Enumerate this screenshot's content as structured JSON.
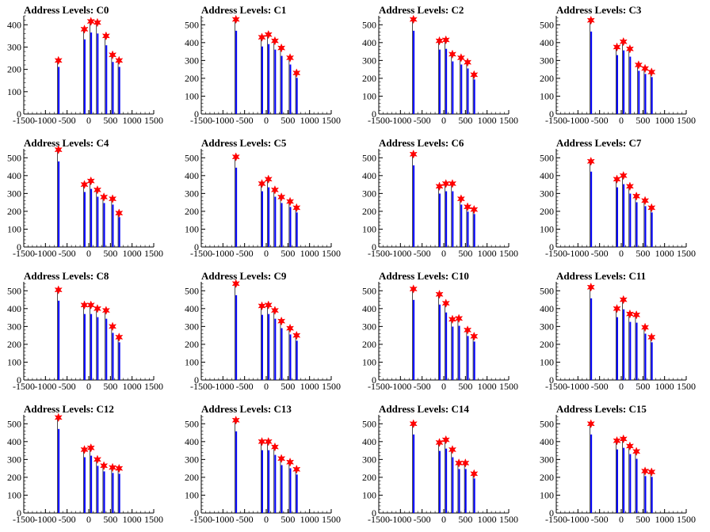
{
  "chart_data": [
    {
      "type": "bar",
      "title": "Address Levels: C0",
      "xlim": [
        -1500,
        1500
      ],
      "ylim": [
        0,
        440
      ],
      "y_ticks": [
        0,
        100,
        200,
        300,
        400
      ],
      "peaks": [
        {
          "x": -700,
          "y": 240
        },
        {
          "x": -100,
          "y": 380
        },
        {
          "x": 50,
          "y": 415
        },
        {
          "x": 200,
          "y": 410
        },
        {
          "x": 400,
          "y": 350
        },
        {
          "x": 550,
          "y": 265
        },
        {
          "x": 700,
          "y": 240
        }
      ]
    },
    {
      "type": "bar",
      "title": "Address Levels: C1",
      "xlim": [
        -1500,
        1500
      ],
      "ylim": [
        0,
        550
      ],
      "y_ticks": [
        0,
        100,
        200,
        300,
        400,
        500
      ],
      "peaks": [
        {
          "x": -700,
          "y": 530
        },
        {
          "x": -100,
          "y": 430
        },
        {
          "x": 50,
          "y": 445
        },
        {
          "x": 200,
          "y": 410
        },
        {
          "x": 350,
          "y": 370
        },
        {
          "x": 550,
          "y": 315
        },
        {
          "x": 700,
          "y": 230
        }
      ]
    },
    {
      "type": "bar",
      "title": "Address Levels: C2",
      "xlim": [
        -1500,
        1500
      ],
      "ylim": [
        0,
        550
      ],
      "y_ticks": [
        0,
        100,
        200,
        300,
        400,
        500
      ],
      "peaks": [
        {
          "x": -700,
          "y": 530
        },
        {
          "x": -100,
          "y": 410
        },
        {
          "x": 50,
          "y": 415
        },
        {
          "x": 200,
          "y": 335
        },
        {
          "x": 400,
          "y": 315
        },
        {
          "x": 550,
          "y": 290
        },
        {
          "x": 700,
          "y": 220
        }
      ]
    },
    {
      "type": "bar",
      "title": "Address Levels: C3",
      "xlim": [
        -1500,
        1500
      ],
      "ylim": [
        0,
        550
      ],
      "y_ticks": [
        0,
        100,
        200,
        300,
        400,
        500
      ],
      "peaks": [
        {
          "x": -700,
          "y": 525
        },
        {
          "x": -100,
          "y": 375
        },
        {
          "x": 50,
          "y": 405
        },
        {
          "x": 200,
          "y": 365
        },
        {
          "x": 400,
          "y": 275
        },
        {
          "x": 550,
          "y": 255
        },
        {
          "x": 700,
          "y": 235
        }
      ]
    },
    {
      "type": "bar",
      "title": "Address Levels: C4",
      "xlim": [
        -1500,
        1500
      ],
      "ylim": [
        0,
        550
      ],
      "y_ticks": [
        0,
        100,
        200,
        300,
        400,
        500
      ],
      "peaks": [
        {
          "x": -700,
          "y": 545
        },
        {
          "x": -100,
          "y": 350
        },
        {
          "x": 50,
          "y": 370
        },
        {
          "x": 200,
          "y": 320
        },
        {
          "x": 350,
          "y": 280
        },
        {
          "x": 550,
          "y": 270
        },
        {
          "x": 700,
          "y": 190
        }
      ]
    },
    {
      "type": "bar",
      "title": "Address Levels: C5",
      "xlim": [
        -1500,
        1500
      ],
      "ylim": [
        0,
        550
      ],
      "y_ticks": [
        0,
        100,
        200,
        300,
        400,
        500
      ],
      "peaks": [
        {
          "x": -700,
          "y": 505
        },
        {
          "x": -100,
          "y": 355
        },
        {
          "x": 50,
          "y": 380
        },
        {
          "x": 200,
          "y": 320
        },
        {
          "x": 350,
          "y": 280
        },
        {
          "x": 550,
          "y": 255
        },
        {
          "x": 700,
          "y": 220
        }
      ]
    },
    {
      "type": "bar",
      "title": "Address Levels: C6",
      "xlim": [
        -1500,
        1500
      ],
      "ylim": [
        0,
        550
      ],
      "y_ticks": [
        0,
        100,
        200,
        300,
        400,
        500
      ],
      "peaks": [
        {
          "x": -700,
          "y": 520
        },
        {
          "x": -100,
          "y": 340
        },
        {
          "x": 50,
          "y": 355
        },
        {
          "x": 200,
          "y": 355
        },
        {
          "x": 400,
          "y": 270
        },
        {
          "x": 550,
          "y": 225
        },
        {
          "x": 700,
          "y": 210
        }
      ]
    },
    {
      "type": "bar",
      "title": "Address Levels: C7",
      "xlim": [
        -1500,
        1500
      ],
      "ylim": [
        0,
        550
      ],
      "y_ticks": [
        0,
        100,
        200,
        300,
        400,
        500
      ],
      "peaks": [
        {
          "x": -700,
          "y": 480
        },
        {
          "x": -100,
          "y": 380
        },
        {
          "x": 50,
          "y": 400
        },
        {
          "x": 200,
          "y": 340
        },
        {
          "x": 350,
          "y": 285
        },
        {
          "x": 550,
          "y": 260
        },
        {
          "x": 700,
          "y": 220
        }
      ]
    },
    {
      "type": "bar",
      "title": "Address Levels: C8",
      "xlim": [
        -1500,
        1500
      ],
      "ylim": [
        0,
        550
      ],
      "y_ticks": [
        0,
        100,
        200,
        300,
        400,
        500
      ],
      "peaks": [
        {
          "x": -700,
          "y": 505
        },
        {
          "x": -100,
          "y": 420
        },
        {
          "x": 50,
          "y": 420
        },
        {
          "x": 200,
          "y": 400
        },
        {
          "x": 400,
          "y": 390
        },
        {
          "x": 550,
          "y": 300
        },
        {
          "x": 700,
          "y": 240
        }
      ]
    },
    {
      "type": "bar",
      "title": "Address Levels: C9",
      "xlim": [
        -1500,
        1500
      ],
      "ylim": [
        0,
        550
      ],
      "y_ticks": [
        0,
        100,
        200,
        300,
        400,
        500
      ],
      "peaks": [
        {
          "x": -700,
          "y": 540
        },
        {
          "x": -100,
          "y": 415
        },
        {
          "x": 50,
          "y": 420
        },
        {
          "x": 200,
          "y": 390
        },
        {
          "x": 350,
          "y": 330
        },
        {
          "x": 550,
          "y": 290
        },
        {
          "x": 700,
          "y": 250
        }
      ]
    },
    {
      "type": "bar",
      "title": "Address Levels: C10",
      "xlim": [
        -1500,
        1500
      ],
      "ylim": [
        0,
        550
      ],
      "y_ticks": [
        0,
        100,
        200,
        300,
        400,
        500
      ],
      "peaks": [
        {
          "x": -700,
          "y": 510
        },
        {
          "x": -100,
          "y": 480
        },
        {
          "x": 50,
          "y": 430
        },
        {
          "x": 200,
          "y": 340
        },
        {
          "x": 350,
          "y": 345
        },
        {
          "x": 550,
          "y": 280
        },
        {
          "x": 700,
          "y": 245
        }
      ]
    },
    {
      "type": "bar",
      "title": "Address Levels: C11",
      "xlim": [
        -1500,
        1500
      ],
      "ylim": [
        0,
        550
      ],
      "y_ticks": [
        0,
        100,
        200,
        300,
        400,
        500
      ],
      "peaks": [
        {
          "x": -700,
          "y": 520
        },
        {
          "x": -100,
          "y": 400
        },
        {
          "x": 50,
          "y": 450
        },
        {
          "x": 200,
          "y": 370
        },
        {
          "x": 350,
          "y": 365
        },
        {
          "x": 550,
          "y": 295
        },
        {
          "x": 700,
          "y": 240
        }
      ]
    },
    {
      "type": "bar",
      "title": "Address Levels: C12",
      "xlim": [
        -1500,
        1500
      ],
      "ylim": [
        0,
        550
      ],
      "y_ticks": [
        0,
        100,
        200,
        300,
        400,
        500
      ],
      "peaks": [
        {
          "x": -700,
          "y": 535
        },
        {
          "x": -100,
          "y": 355
        },
        {
          "x": 50,
          "y": 365
        },
        {
          "x": 200,
          "y": 300
        },
        {
          "x": 350,
          "y": 265
        },
        {
          "x": 550,
          "y": 255
        },
        {
          "x": 700,
          "y": 250
        }
      ]
    },
    {
      "type": "bar",
      "title": "Address Levels: C13",
      "xlim": [
        -1500,
        1500
      ],
      "ylim": [
        0,
        550
      ],
      "y_ticks": [
        0,
        100,
        200,
        300,
        400,
        500
      ],
      "peaks": [
        {
          "x": -700,
          "y": 520
        },
        {
          "x": -100,
          "y": 400
        },
        {
          "x": 50,
          "y": 400
        },
        {
          "x": 200,
          "y": 370
        },
        {
          "x": 350,
          "y": 305
        },
        {
          "x": 550,
          "y": 285
        },
        {
          "x": 700,
          "y": 245
        }
      ]
    },
    {
      "type": "bar",
      "title": "Address Levels: C14",
      "xlim": [
        -1500,
        1500
      ],
      "ylim": [
        0,
        550
      ],
      "y_ticks": [
        0,
        100,
        200,
        300,
        400,
        500
      ],
      "peaks": [
        {
          "x": -700,
          "y": 500
        },
        {
          "x": -100,
          "y": 395
        },
        {
          "x": 50,
          "y": 410
        },
        {
          "x": 200,
          "y": 355
        },
        {
          "x": 350,
          "y": 280
        },
        {
          "x": 500,
          "y": 280
        },
        {
          "x": 700,
          "y": 220
        }
      ]
    },
    {
      "type": "bar",
      "title": "Address Levels: C15",
      "xlim": [
        -1500,
        1500
      ],
      "ylim": [
        0,
        550
      ],
      "y_ticks": [
        0,
        100,
        200,
        300,
        400,
        500
      ],
      "peaks": [
        {
          "x": -700,
          "y": 500
        },
        {
          "x": -100,
          "y": 405
        },
        {
          "x": 50,
          "y": 415
        },
        {
          "x": 200,
          "y": 375
        },
        {
          "x": 350,
          "y": 345
        },
        {
          "x": 550,
          "y": 235
        },
        {
          "x": 700,
          "y": 230
        }
      ]
    }
  ],
  "x_ticks": [
    -1500,
    -1000,
    -500,
    0,
    500,
    1000,
    1500
  ],
  "colors": {
    "bar": "#0000ff",
    "hist_line": "#000000",
    "marker": "#ff0000",
    "axis": "#000000"
  }
}
